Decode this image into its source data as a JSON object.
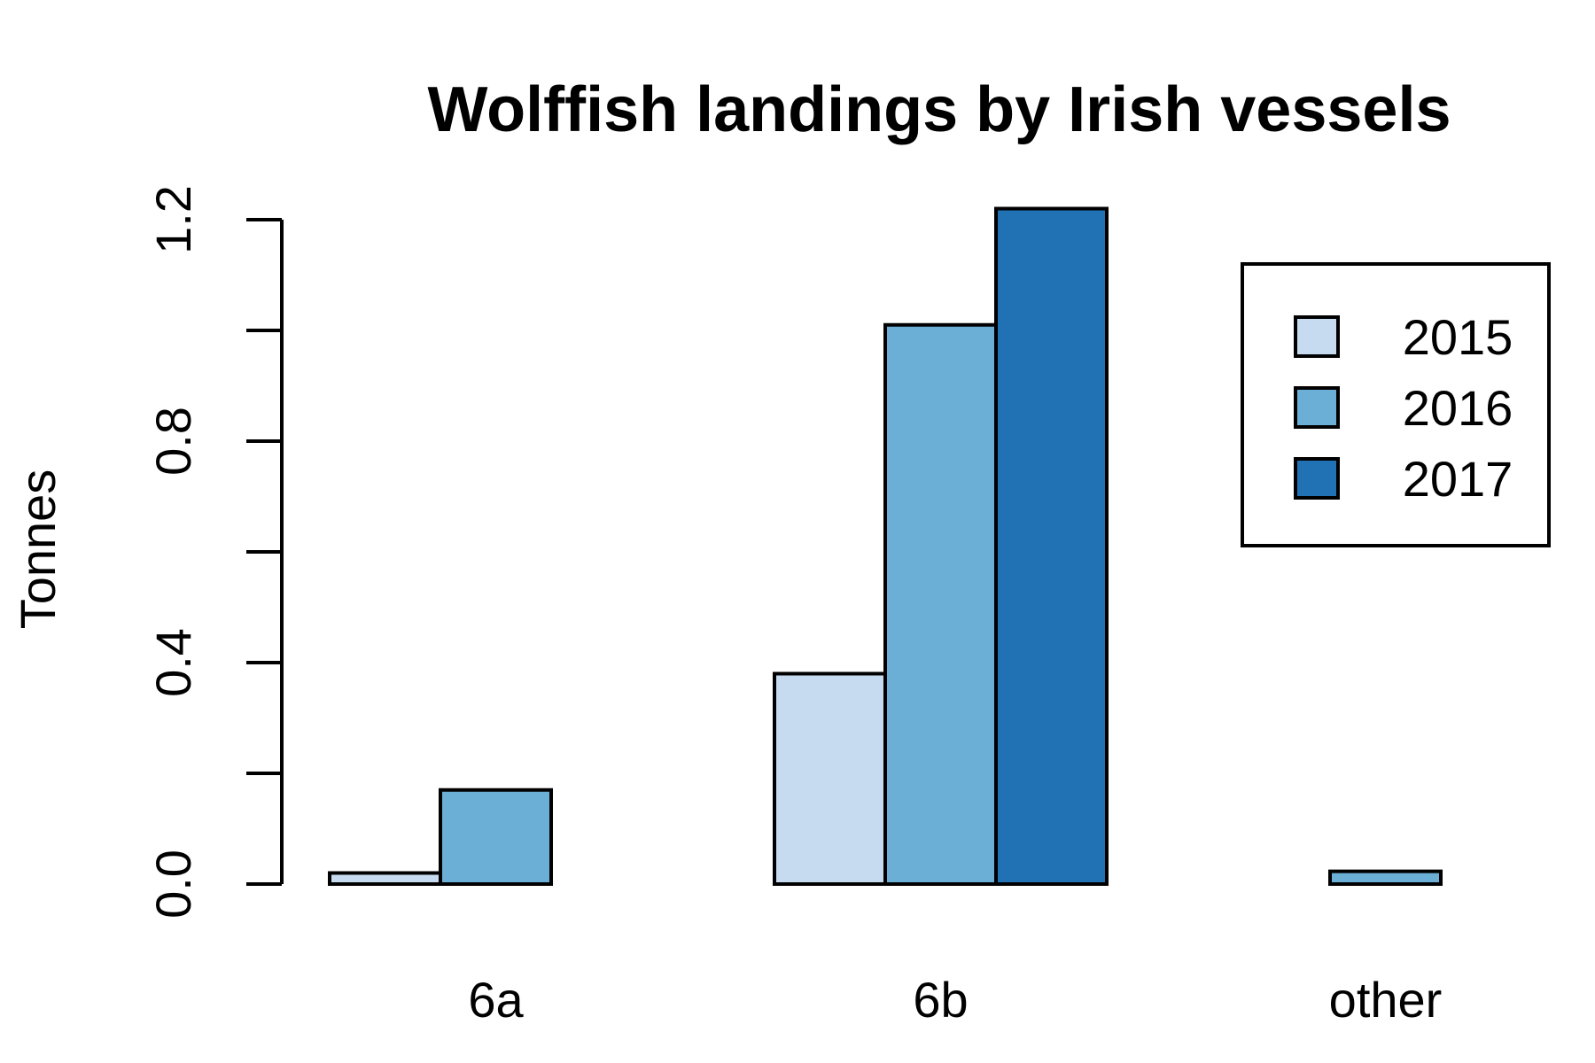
{
  "chart_data": {
    "type": "bar",
    "title": "Wolffish landings by Irish vessels",
    "xlabel": "",
    "ylabel": "Tonnes",
    "categories": [
      "6a",
      "6b",
      "other"
    ],
    "series": [
      {
        "name": "2015",
        "color": "#c6dbef",
        "values": [
          0.02,
          0.38,
          0.0
        ]
      },
      {
        "name": "2016",
        "color": "#6baed6",
        "values": [
          0.17,
          1.01,
          0.023
        ]
      },
      {
        "name": "2017",
        "color": "#2171b5",
        "values": [
          0.0,
          1.22,
          0.0
        ]
      }
    ],
    "yticks": [
      "0.0",
      "0.4",
      "0.8",
      "1.2"
    ],
    "ylim": [
      0,
      1.2
    ],
    "grid": false,
    "legend_position": "top-right"
  }
}
